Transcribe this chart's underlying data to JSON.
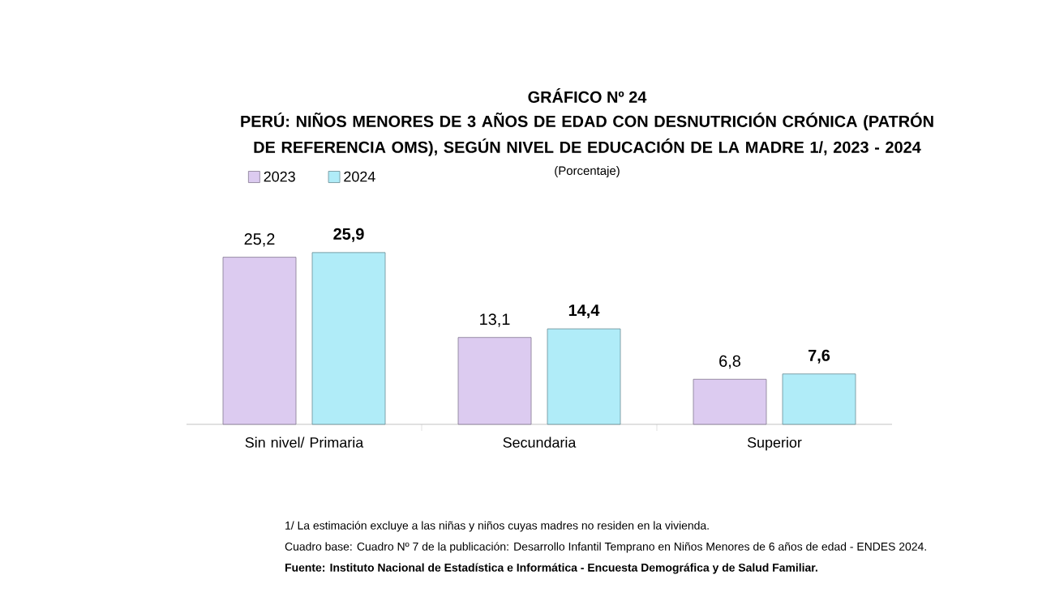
{
  "chart_data": {
    "type": "bar",
    "title": "GRÁFICO Nº 24",
    "subtitle": "PERÚ: NIÑOS MENORES DE 3 AÑOS DE EDAD CON DESNUTRICIÓN CRÓNICA (PATRÓN DE REFERENCIA OMS), SEGÚN NIVEL DE EDUCACIÓN DE LA MADRE 1/, 2023 - 2024",
    "categories": [
      "Sin nivel/ Primaria",
      "Secundaria",
      "Superior"
    ],
    "series": [
      {
        "name": "2023",
        "color": "#dccbf0",
        "values": [
          25.2,
          13.1,
          6.8
        ],
        "value_labels": [
          "25,2",
          "13,1",
          "6,8"
        ]
      },
      {
        "name": "2024",
        "color": "#b0ecf8",
        "values": [
          25.9,
          14.4,
          7.6
        ],
        "value_labels": [
          "25,9",
          "14,4",
          "7,6"
        ]
      }
    ],
    "legend": "top left",
    "annotations": [
      "(Porcentaje)",
      "1/ La estimación excluye a las niñas y niños cuyas madres no residen en la vivienda.",
      "Cuadro base: Cuadro Nº 7 de la publicación: Desarrollo Infantil Temprano en Niños Menores de 6 años de edad - ENDES 2024.",
      "Fuente: Instituto Nacional de Estadística e Informática - Encuesta Demográfica y de Salud Familiar."
    ]
  }
}
